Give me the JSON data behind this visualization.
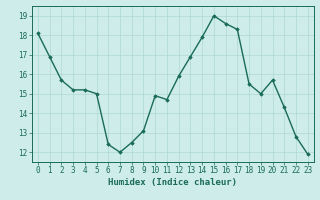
{
  "x": [
    0,
    1,
    2,
    3,
    4,
    5,
    6,
    7,
    8,
    9,
    10,
    11,
    12,
    13,
    14,
    15,
    16,
    17,
    18,
    19,
    20,
    21,
    22,
    23
  ],
  "y": [
    18.1,
    16.9,
    15.7,
    15.2,
    15.2,
    15.0,
    12.4,
    12.0,
    12.5,
    13.1,
    14.9,
    14.7,
    15.9,
    16.9,
    17.9,
    19.0,
    18.6,
    18.3,
    15.5,
    15.0,
    15.7,
    14.3,
    12.8,
    11.9
  ],
  "line_color": "#1a6b5a",
  "marker": "D",
  "markersize": 1.8,
  "linewidth": 1.0,
  "bg_color": "#cdecea",
  "grid_color": "#aed8d4",
  "xlabel": "Humidex (Indice chaleur)",
  "xlim": [
    -0.5,
    23.5
  ],
  "ylim": [
    11.5,
    19.5
  ],
  "yticks": [
    12,
    13,
    14,
    15,
    16,
    17,
    18,
    19
  ],
  "xticks": [
    0,
    1,
    2,
    3,
    4,
    5,
    6,
    7,
    8,
    9,
    10,
    11,
    12,
    13,
    14,
    15,
    16,
    17,
    18,
    19,
    20,
    21,
    22,
    23
  ],
  "xlabel_fontsize": 6.5,
  "tick_fontsize": 5.5,
  "tick_color": "#1a6b5a",
  "axis_color": "#1a6b5a"
}
